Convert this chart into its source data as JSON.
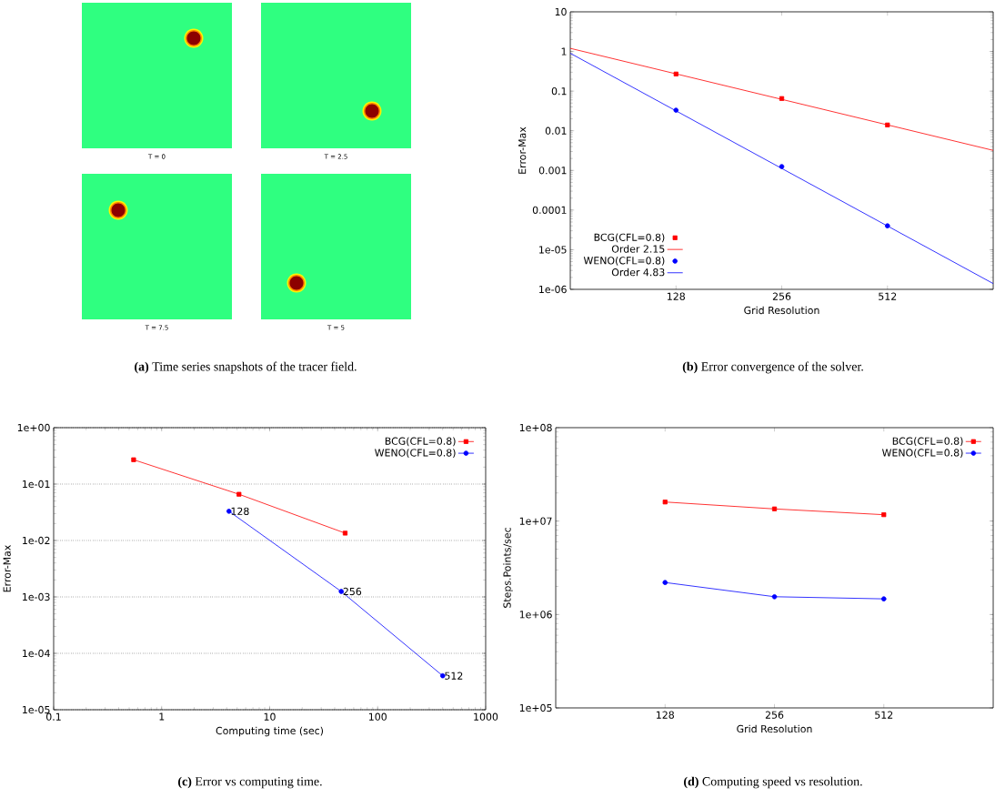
{
  "chart_data": [
    {
      "type": "other",
      "title": "**(a)** Time series snapshots of the tracer field.",
      "annotations": [
        "T = 0",
        "T = 2.5",
        "T = 7.5",
        "T = 5"
      ]
    },
    {
      "type": "scatter",
      "title": "**(b)** Error convergence of the solver.",
      "xlabel": "Grid Resolution",
      "ylabel": "Error-Max",
      "log": "xy",
      "xlim": [
        64,
        1024
      ],
      "xticks": [
        128,
        256,
        512
      ],
      "ylim": [
        1e-06,
        10
      ],
      "yticks": [
        {
          "value": 1e-06,
          "label": "1e-06"
        },
        {
          "value": 1e-05,
          "label": "1e-05"
        },
        0.0001,
        0.001,
        0.01,
        0.1,
        1,
        10
      ],
      "legend": "bottom left",
      "grid": false,
      "series": [
        {
          "name": "BCG(CFL=0.8)",
          "type": "scatter",
          "marker": "square",
          "color": "#ff0000",
          "x": [
            128,
            256,
            512
          ],
          "values": [
            0.27,
            0.065,
            0.014
          ]
        },
        {
          "name": "Order 2.15",
          "type": "line",
          "marker": "none",
          "color": "#ff0000",
          "x": [
            64,
            1024
          ],
          "values": [
            1.2,
            0.0032
          ]
        },
        {
          "name": "WENO(CFL=0.8)",
          "type": "scatter",
          "marker": "circle",
          "color": "#0000ff",
          "x": [
            128,
            256,
            512
          ],
          "values": [
            0.033,
            0.00125,
            4e-05
          ]
        },
        {
          "name": "Order 4.83",
          "type": "line",
          "marker": "none",
          "color": "#0000ff",
          "x": [
            64,
            1024
          ],
          "values": [
            0.9,
            1.4e-06
          ]
        }
      ]
    },
    {
      "type": "line",
      "title": "**(c)** Error vs computing time.",
      "xlabel": "Computing time (sec)",
      "ylabel": "Error-Max",
      "log": "xy",
      "xlim": [
        0.1,
        1000
      ],
      "xticks": [
        0.1,
        1,
        10,
        100,
        1000
      ],
      "ylim": [
        1e-05,
        1
      ],
      "yticks": [
        {
          "value": 1e-05,
          "label": "1e-05"
        },
        {
          "value": 0.0001,
          "label": "1e-04"
        },
        {
          "value": 0.001,
          "label": "1e-03"
        },
        {
          "value": 0.01,
          "label": "1e-02"
        },
        {
          "value": 0.1,
          "label": "1e-01"
        },
        {
          "value": 1,
          "label": "1e+00"
        }
      ],
      "legend": "top right",
      "grid": "y",
      "series": [
        {
          "name": "BCG(CFL=0.8)",
          "type": "line",
          "marker": "square",
          "color": "#ff0000",
          "x": [
            0.55,
            5.2,
            50
          ],
          "values": [
            0.27,
            0.066,
            0.0135
          ]
        },
        {
          "name": "WENO(CFL=0.8)",
          "type": "line",
          "marker": "circle",
          "color": "#0000ff",
          "x": [
            4.2,
            46,
            400
          ],
          "values": [
            0.033,
            0.00125,
            4e-05
          ]
        }
      ],
      "annotations": [
        {
          "text": "128",
          "x": 4.2,
          "y": 0.033
        },
        {
          "text": "256",
          "x": 46,
          "y": 0.00125
        },
        {
          "text": "512",
          "x": 400,
          "y": 4e-05
        }
      ]
    },
    {
      "type": "line",
      "title": "**(d)** Computing speed vs resolution.",
      "xlabel": "Grid Resolution",
      "ylabel": "Steps.Points/sec",
      "log": "xy",
      "xlim": [
        64,
        1024
      ],
      "xticks": [
        128,
        256,
        512
      ],
      "ylim": [
        100000,
        100000000
      ],
      "yticks": [
        {
          "value": 100000,
          "label": "1e+05"
        },
        {
          "value": 1000000,
          "label": "1e+06"
        },
        {
          "value": 10000000,
          "label": "1e+07"
        },
        {
          "value": 100000000,
          "label": "1e+08"
        }
      ],
      "legend": "top right",
      "grid": false,
      "series": [
        {
          "name": "BCG(CFL=0.8)",
          "type": "line",
          "marker": "square",
          "color": "#ff0000",
          "x": [
            128,
            256,
            512
          ],
          "values": [
            16000000,
            13500000,
            11700000
          ]
        },
        {
          "name": "WENO(CFL=0.8)",
          "type": "line",
          "marker": "circle",
          "color": "#0000ff",
          "x": [
            128,
            256,
            512
          ],
          "values": [
            2200000,
            1550000,
            1470000
          ]
        }
      ]
    }
  ]
}
